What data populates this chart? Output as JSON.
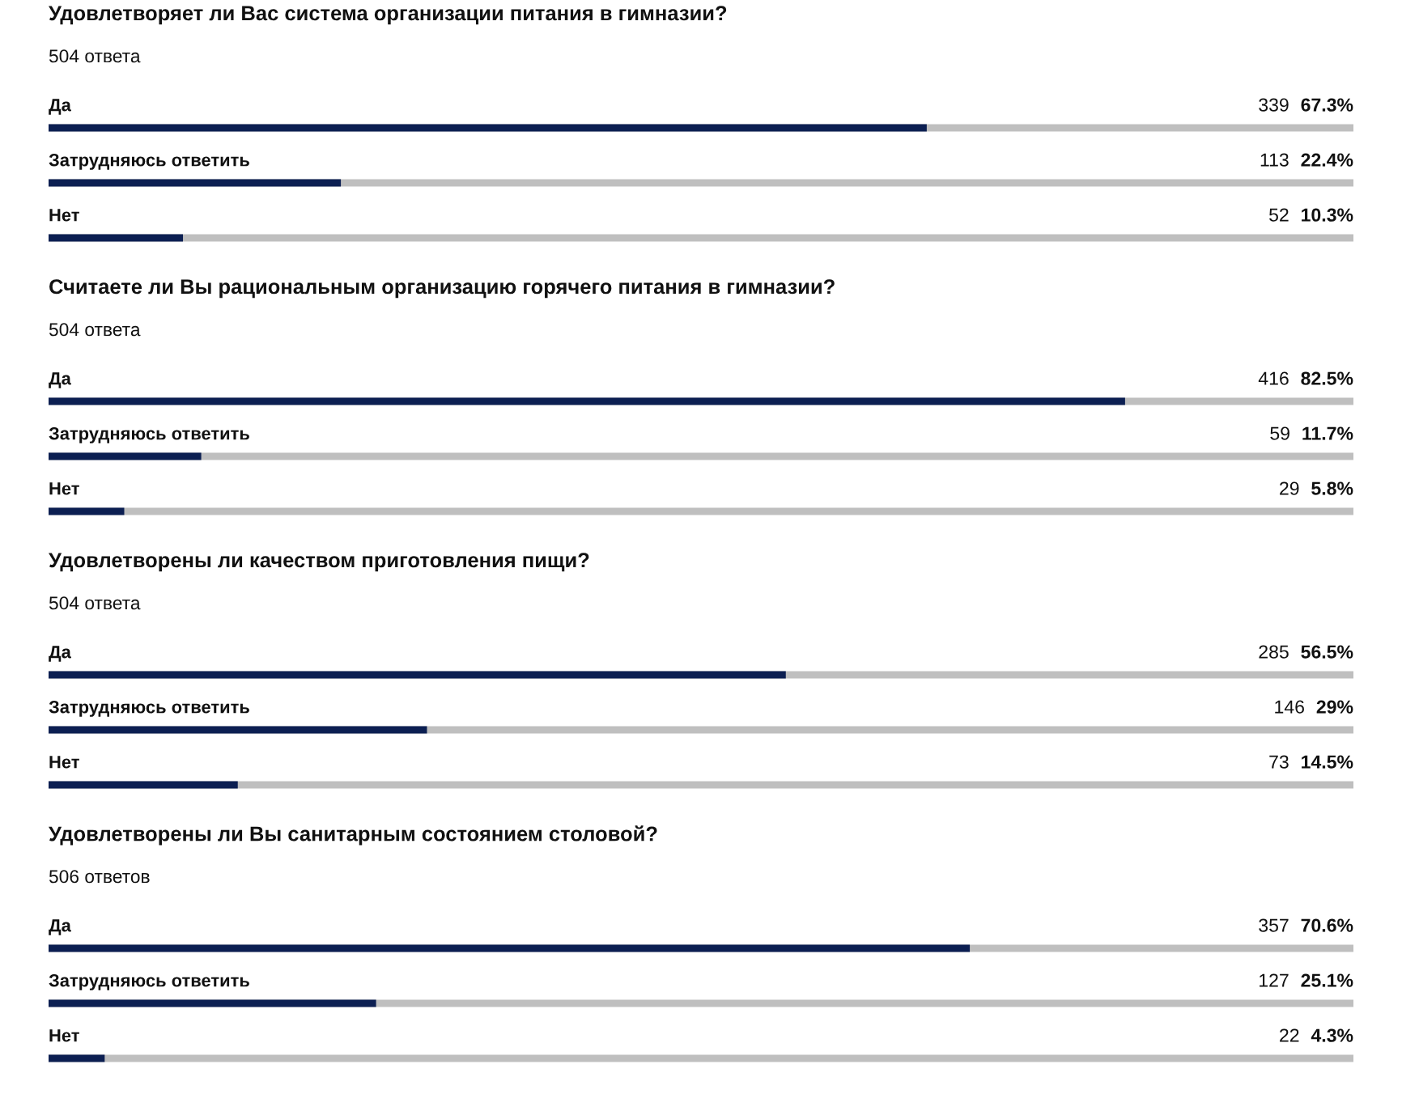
{
  "chart_data": [
    {
      "type": "bar",
      "orientation": "horizontal",
      "title": "Удовлетворяет ли Вас система организации питания в гимназии?",
      "subtitle": "504 ответа",
      "categories": [
        "Да",
        "Затрудняюсь ответить",
        "Нет"
      ],
      "tick_labels": "y",
      "grid": "y",
      "series": [
        {
          "color": "#0c1f52",
          "values": [
            67.3,
            22.4,
            10.3
          ],
          "value_labels": [
            "339 67.3%",
            "113 22.4%",
            "52 10.3%"
          ]
        }
      ]
    },
    {
      "type": "bar",
      "orientation": "horizontal",
      "title": "Считаете ли Вы рациональным организацию горячего питания в гимназии?",
      "subtitle": "504 ответа",
      "categories": [
        "Да",
        "Затрудняюсь ответить",
        "Нет"
      ],
      "tick_labels": "y",
      "grid": "y",
      "series": [
        {
          "color": "#0c1f52",
          "values": [
            82.5,
            11.7,
            5.8
          ],
          "value_labels": [
            "416 82.5%",
            "59 11.7%",
            "29 5.8%"
          ]
        }
      ]
    },
    {
      "type": "bar",
      "orientation": "horizontal",
      "title": "Удовлетворены ли качеством приготовления пищи?",
      "subtitle": "504 ответа",
      "categories": [
        "Да",
        "Затрудняюсь ответить",
        "Нет"
      ],
      "tick_labels": "y",
      "grid": "y",
      "series": [
        {
          "color": "#0c1f52",
          "values": [
            56.5,
            29,
            14.5
          ],
          "value_labels": [
            "285 56.5%",
            "146 29%",
            "73 14.5%"
          ]
        }
      ]
    },
    {
      "type": "bar",
      "orientation": "horizontal",
      "title": "Удовлетворены ли Вы санитарным состоянием столовой?",
      "subtitle": "506 ответов",
      "categories": [
        "Да",
        "Затрудняюсь ответить",
        "Нет"
      ],
      "tick_labels": "y",
      "grid": "y",
      "series": [
        {
          "color": "#0c1f52",
          "values": [
            70.6,
            25.1,
            4.3
          ],
          "value_labels": [
            "357 70.6%",
            "127 25.1%",
            "22 4.3%"
          ]
        }
      ]
    }
  ]
}
